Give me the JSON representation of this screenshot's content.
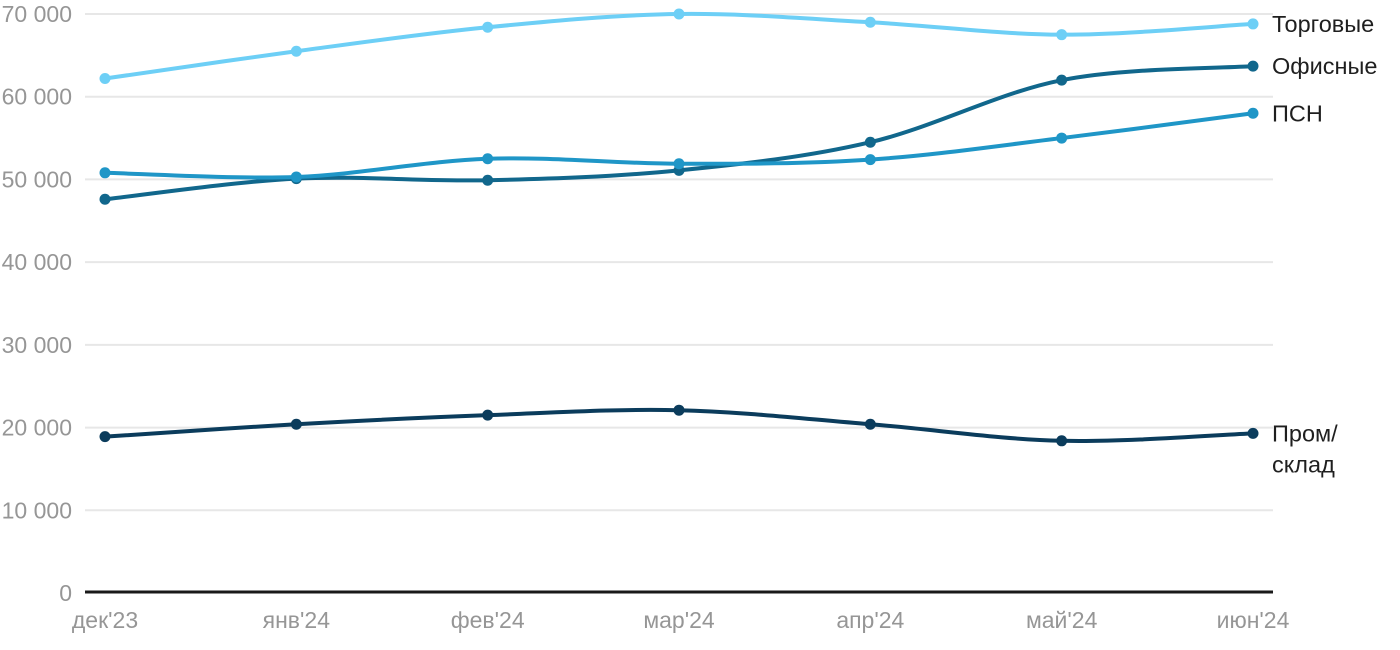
{
  "chart_data": {
    "type": "line",
    "title": "",
    "xlabel": "",
    "ylabel": "",
    "x_categories": [
      "дек'23",
      "янв'24",
      "фев'24",
      "мар'24",
      "апр'24",
      "май'24",
      "июн'24"
    ],
    "y_ticks": [
      0,
      10000,
      20000,
      30000,
      40000,
      50000,
      60000,
      70000
    ],
    "y_tick_labels": [
      "0",
      "10 000",
      "20 000",
      "30 000",
      "40 000",
      "50 000",
      "60 000",
      "70 000"
    ],
    "ylim": [
      0,
      70000
    ],
    "grid": "horizontal-only",
    "legend_position": "labels-at-line-ends-right",
    "series": [
      {
        "key": "retail",
        "name": "Торговые",
        "label_lines": [
          "Торговые"
        ],
        "color": "#6DCFF6",
        "values": [
          62200,
          65500,
          68400,
          70000,
          69000,
          67500,
          68800
        ]
      },
      {
        "key": "office",
        "name": "Офисные",
        "label_lines": [
          "Офисные"
        ],
        "color": "#11678C",
        "values": [
          47600,
          50100,
          49900,
          51100,
          54500,
          62000,
          63700
        ]
      },
      {
        "key": "psn",
        "name": "ПСН",
        "label_lines": [
          "ПСН"
        ],
        "color": "#1F96C7",
        "values": [
          50800,
          50300,
          52500,
          51900,
          52400,
          55000,
          58000
        ]
      },
      {
        "key": "industrial",
        "name": "Пром/склад",
        "label_lines": [
          "Пром/",
          "склад"
        ],
        "color": "#0B3C5C",
        "values": [
          18900,
          20400,
          21500,
          22100,
          20400,
          18400,
          19300
        ]
      }
    ],
    "colors": {
      "grid_line": "#E7E7E7",
      "axis_line": "#1A1A1A",
      "tick_label": "#969696",
      "series_label_text": "#1F1F1F",
      "background": "#FFFFFF"
    }
  }
}
